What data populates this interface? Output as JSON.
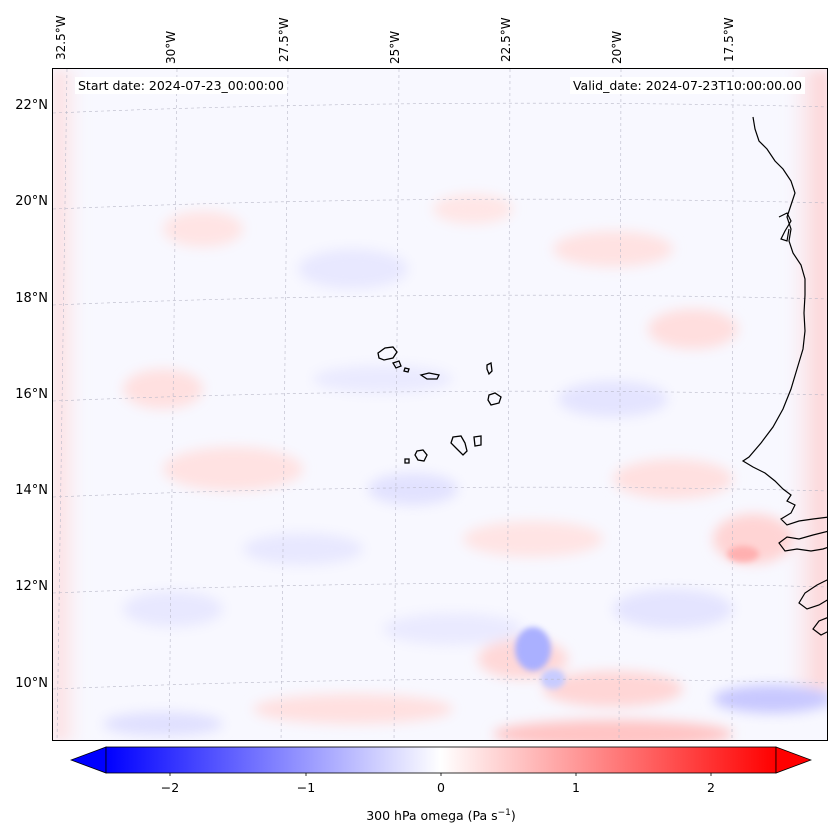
{
  "map": {
    "start_date": "Start date: 2024-07-23_00:00:00",
    "valid_date": "Valid_date: 2024-07-23T10:00:00.00",
    "lon_labels": [
      "32.5°W",
      "30°W",
      "27.5°W",
      "25°W",
      "22.5°W",
      "20°W",
      "17.5°W"
    ],
    "lat_labels": [
      "22°N",
      "20°N",
      "18°N",
      "16°N",
      "14°N",
      "12°N",
      "10°N"
    ],
    "variable": "300 hPa omega",
    "units": "Pa s⁻¹",
    "islands": [
      "Santo Antão",
      "São Vicente",
      "Santa Luzia",
      "São Nicolau",
      "Sal",
      "Boa Vista",
      "Maio",
      "Santiago",
      "Fogo",
      "Brava"
    ]
  },
  "colorbar": {
    "label_text": "300 hPa omega (Pa s",
    "label_sup": "−1",
    "label_close": ")",
    "ticks": [
      "−2",
      "−1",
      "0",
      "1",
      "2"
    ],
    "vmin": -2.6,
    "vmax": 2.6,
    "colormap": "bwr",
    "color_negative": "#0000ff",
    "color_zero": "#ffffff",
    "color_positive": "#ff0000",
    "extend": "both"
  }
}
